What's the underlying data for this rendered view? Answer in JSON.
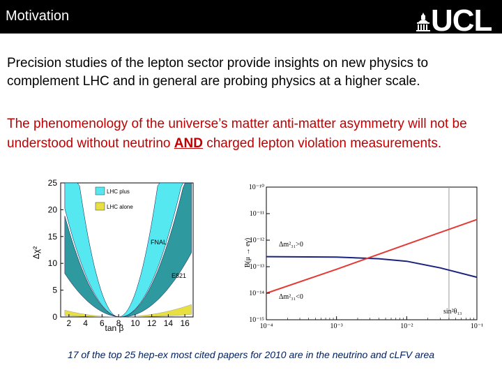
{
  "header": {
    "title": "Motivation",
    "logo_text": "UCL",
    "logo_icon": "ucl-dome-icon"
  },
  "body": {
    "paragraph1": "Precision studies of the lepton sector provide insights on new physics to complement LHC and in general are probing physics at a higher scale.",
    "paragraph2_pre": "The phenomenology of the universe’s matter anti-matter asymmetry will not be understood without neutrino ",
    "paragraph2_em": "AND",
    "paragraph2_post": " charged lepton violation measurements."
  },
  "caption": "17 of the top 25 hep-ex most cited papers for 2010 are in the neutrino and cLFV area",
  "chart_data": [
    {
      "type": "line",
      "xlabel": "tan β",
      "ylabel": "Δχ²",
      "x_ticks": [
        "2",
        "4",
        "6",
        "8",
        "10",
        "12",
        "14",
        "16"
      ],
      "y_ticks": [
        "0",
        "5",
        "10",
        "15",
        "20",
        "25"
      ],
      "xlim": [
        1,
        17
      ],
      "ylim": [
        0,
        25
      ],
      "legend": [
        "LHC plus",
        "LHC alone"
      ],
      "annotations": [
        "FNAL",
        "E821"
      ],
      "colors": {
        "lhc_plus": "#55e8f0",
        "lhc_alone": "#e8e040",
        "dark_band": "#2e9aa0"
      }
    },
    {
      "type": "line",
      "xlabel": "sin²θ₁₃",
      "ylabel": "B(μ → eγ)",
      "x_ticks": [
        "10⁻⁴",
        "10⁻³",
        "10⁻²",
        "10⁻¹"
      ],
      "y_ticks": [
        "10⁻¹⁰",
        "10⁻¹¹",
        "10⁻¹²",
        "10⁻¹³",
        "10⁻¹⁴",
        "10⁻¹⁵"
      ],
      "xlim": [
        0.0001,
        0.1
      ],
      "ylim": [
        1e-15,
        1e-10
      ],
      "log_x": true,
      "log_y": true,
      "series": [
        {
          "name": "Δm²₃₁>0",
          "color": "#1a237e",
          "x": [
            0.0001,
            0.001,
            0.004,
            0.01,
            0.03,
            0.1
          ],
          "y": [
            2.4e-13,
            2.3e-13,
            2e-13,
            1.6e-13,
            9e-14,
            4e-14
          ]
        },
        {
          "name": "Δm²₃₁<0",
          "color": "#e53935",
          "x": [
            0.0001,
            0.001,
            0.01,
            0.1
          ],
          "y": [
            1e-14,
            8e-14,
            7e-13,
            6e-12
          ]
        }
      ],
      "vline_x": 0.04
    }
  ]
}
